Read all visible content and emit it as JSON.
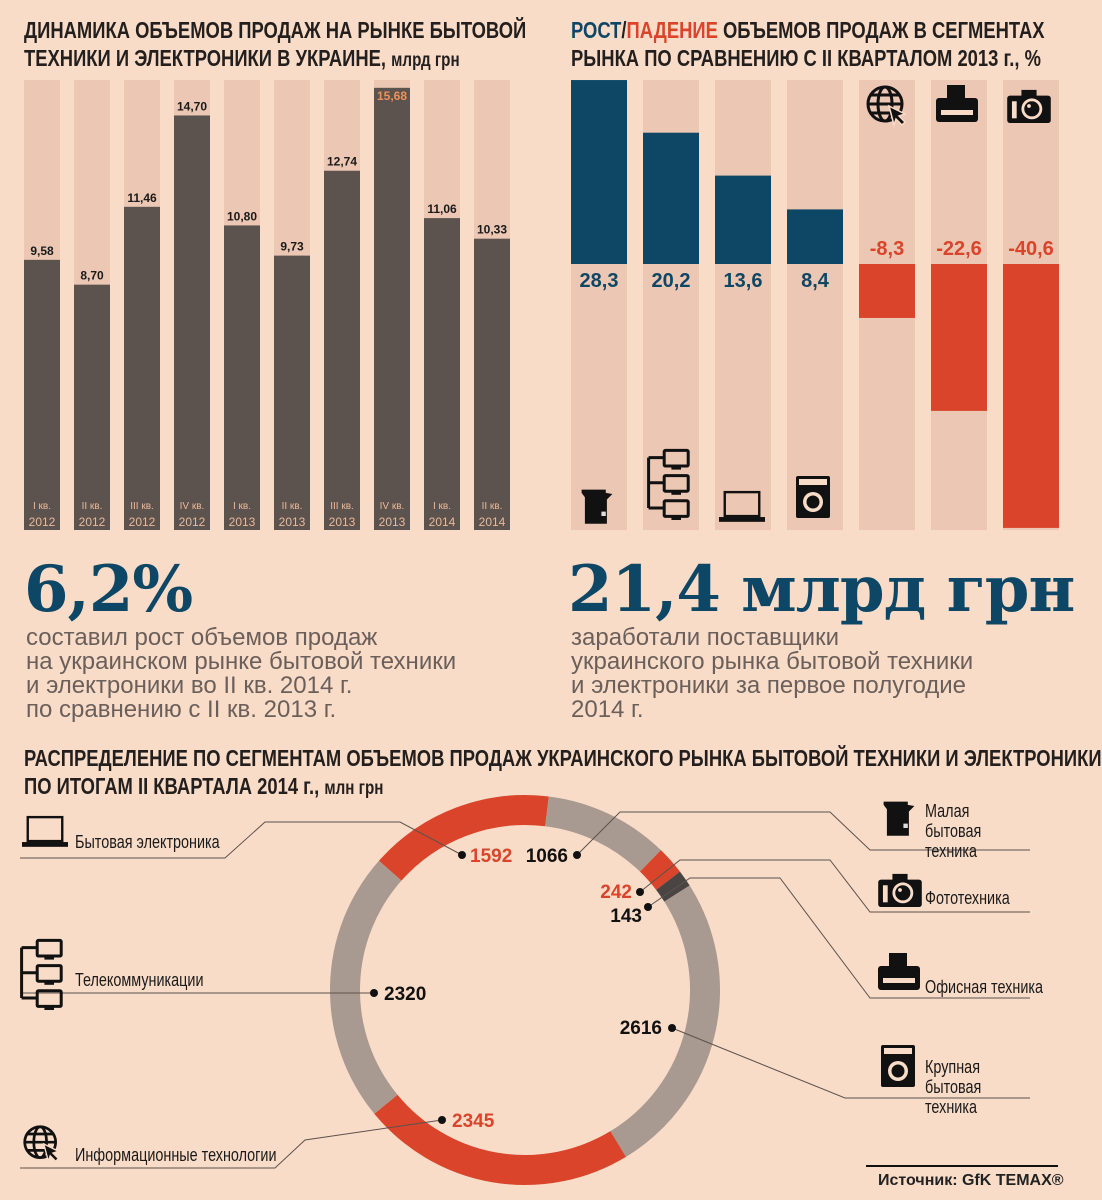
{
  "colors": {
    "background": "#f9dcc8",
    "column_bg": "#ecc7b4",
    "dark_bar": "#5c524e",
    "navy": "#0e4766",
    "red": "#d9442a",
    "ring_gray": "#a89a90",
    "ring_dark": "#4a4542",
    "quarter_text": "#eab99a",
    "highlight_label": "#f0915a"
  },
  "left_section": {
    "title_line1": "ДИНАМИКА ОБЪЕМОВ ПРОДАЖ НА РЫНКЕ БЫТОВОЙ",
    "title_line2": "ТЕХНИКИ И ЭЛЕКТРОНИКИ В УКРАИНЕ,",
    "title_unit": "млрд грн",
    "stat": "6,2%",
    "stat_text": [
      "составил рост объемов продаж",
      "на украинском рынке бытовой техники",
      "и электроники во II кв. 2014 г.",
      "по сравнению с II кв. 2013 г."
    ]
  },
  "right_section": {
    "title_grow": "РОСТ",
    "title_slash": "/",
    "title_fall": "ПАДЕНИЕ",
    "title_line1_rest": " ОБЪЕМОВ ПРОДАЖ В СЕГМЕНТАХ",
    "title_line2": "РЫНКА ПО СРАВНЕНИЮ С II КВАРТАЛОМ 2013 г., %",
    "stat": "21,4 млрд грн",
    "stat_text": [
      "заработали поставщики",
      "украинского рынка бытовой техники",
      "и электроники за первое полугодие",
      "2014 г."
    ]
  },
  "bottom_section": {
    "title_line1": "РАСПРЕДЕЛЕНИЕ ПО СЕГМЕНТАМ ОБЪЕМОВ ПРОДАЖ УКРАИНСКОГО РЫНКА БЫТОВОЙ ТЕХНИКИ И ЭЛЕКТРОНИКИ",
    "title_line2": "ПО ИТОГАМ II КВАРТАЛА 2014 г.,",
    "title_unit": "млн грн",
    "source": "Источник: GfK TEMAX®"
  },
  "chart_data": [
    {
      "type": "bar",
      "title": "ДИНАМИКА ОБЪЕМОВ ПРОДАЖ НА РЫНКЕ БЫТОВОЙ ТЕХНИКИ И ЭЛЕКТРОНИКИ В УКРАИНЕ, млрд грн",
      "categories": [
        [
          "I кв.",
          "2012"
        ],
        [
          "II кв.",
          "2012"
        ],
        [
          "III кв.",
          "2012"
        ],
        [
          "IV кв.",
          "2012"
        ],
        [
          "I кв.",
          "2013"
        ],
        [
          "II кв.",
          "2013"
        ],
        [
          "III кв.",
          "2013"
        ],
        [
          "IV кв.",
          "2013"
        ],
        [
          "I кв.",
          "2014"
        ],
        [
          "II кв.",
          "2014"
        ]
      ],
      "values": [
        9.58,
        8.7,
        11.46,
        14.7,
        10.8,
        9.73,
        12.74,
        15.68,
        11.06,
        10.33
      ],
      "value_labels": [
        "9,58",
        "8,70",
        "11,46",
        "14,70",
        "10,80",
        "9,73",
        "12,74",
        "15,68",
        "11,06",
        "10,33"
      ],
      "ylim": [
        0,
        16
      ]
    },
    {
      "type": "bar",
      "title": "РОСТ/ПАДЕНИЕ ОБЪЕМОВ ПРОДАЖ В СЕГМЕНТАХ РЫНКА ПО СРАВНЕНИЮ С II КВАРТАЛОМ 2013 г., %",
      "categories": [
        "kettle-icon",
        "network-icon",
        "laptop-icon",
        "washer-icon",
        "globe-icon",
        "printer-icon",
        "camera-icon"
      ],
      "values": [
        28.3,
        20.2,
        13.6,
        8.4,
        -8.3,
        -22.6,
        -40.6
      ],
      "value_labels": [
        "28,3",
        "20,2",
        "13,6",
        "8,4",
        "-8,3",
        "-22,6",
        "-40,6"
      ],
      "ylim": [
        -41,
        29
      ]
    },
    {
      "type": "pie",
      "title": "РАСПРЕДЕЛЕНИЕ ПО СЕГМЕНТАМ ОБЪЕМОВ ПРОДАЖ УКРАИНСКОГО РЫНКА БЫТОВОЙ ТЕХНИКИ И ЭЛЕКТРОНИКИ ПО ИТОГАМ II КВАРТАЛА 2014 г., млн грн",
      "donut": true,
      "slices": [
        {
          "label": "Бытовая электроника",
          "value": 1592,
          "value_label": "1592",
          "color": "#d9442a",
          "icon": "laptop-icon"
        },
        {
          "label": "Малая бытовая техника",
          "value": 1066,
          "value_label": "1066",
          "color": "#a89a90",
          "icon": "kettle-icon"
        },
        {
          "label": "Фототехника",
          "value": 242,
          "value_label": "242",
          "color": "#d9442a",
          "icon": "camera-icon"
        },
        {
          "label": "Офисная техника",
          "value": 143,
          "value_label": "143",
          "color": "#4a4542",
          "icon": "printer-icon"
        },
        {
          "label": "Крупная бытовая техника",
          "value": 2616,
          "value_label": "2616",
          "color": "#a89a90",
          "icon": "washer-icon"
        },
        {
          "label": "Информационные технологии",
          "value": 2345,
          "value_label": "2345",
          "color": "#d9442a",
          "icon": "globe-icon"
        },
        {
          "label": "Телекоммуникации",
          "value": 2320,
          "value_label": "2320",
          "color": "#a89a90",
          "icon": "network-icon"
        }
      ]
    }
  ]
}
